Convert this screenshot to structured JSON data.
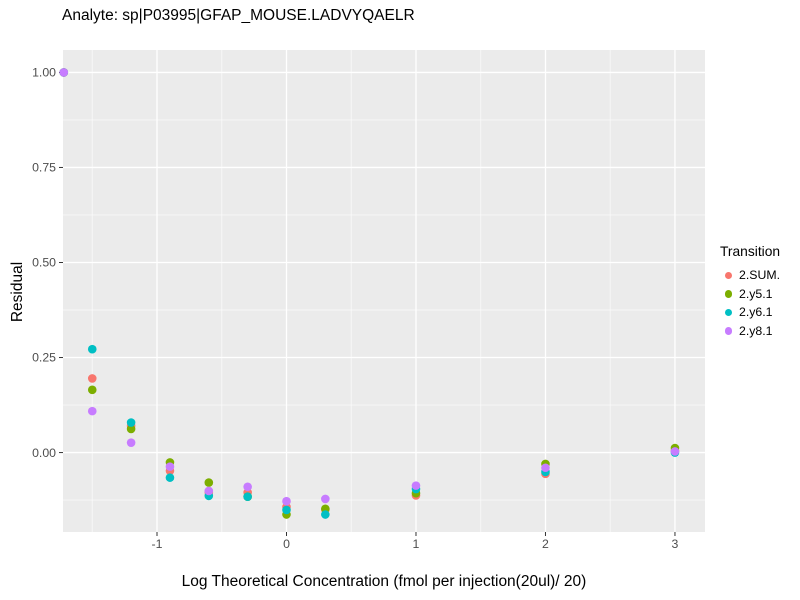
{
  "window": {
    "title": "Analyte: sp|P03995|GFAP_MOUSE.LADVYQAELR"
  },
  "legend": {
    "title": "Transition",
    "items": [
      {
        "label": "2.SUM.",
        "color": "#F8766D"
      },
      {
        "label": "2.y5.1",
        "color": "#7CAE00"
      },
      {
        "label": "2.y6.1",
        "color": "#00BFC4"
      },
      {
        "label": "2.y8.1",
        "color": "#C77CFF"
      }
    ]
  },
  "chart_data": {
    "type": "scatter",
    "title": "Analyte: sp|P03995|GFAP_MOUSE.LADVYQAELR",
    "xlabel": "Log Theoretical Concentration (fmol per injection(20ul)/ 20)",
    "ylabel": "Residual",
    "x": [
      -1.72,
      -1.5,
      -1.2,
      -0.9,
      -0.6,
      -0.3,
      0,
      0.3,
      1,
      2,
      3
    ],
    "series": [
      {
        "name": "2.SUM.",
        "color": "#F8766D",
        "values": [
          1.0,
          0.195,
          0.07,
          -0.048,
          -0.105,
          -0.105,
          -0.143,
          -0.15,
          -0.113,
          -0.056,
          0.005
        ]
      },
      {
        "name": "2.y5.1",
        "color": "#7CAE00",
        "values": [
          1.0,
          0.165,
          0.062,
          -0.026,
          -0.079,
          -0.116,
          -0.163,
          -0.148,
          -0.107,
          -0.03,
          0.012
        ]
      },
      {
        "name": "2.y6.1",
        "color": "#00BFC4",
        "values": [
          1.0,
          0.272,
          0.079,
          -0.066,
          -0.114,
          -0.116,
          -0.151,
          -0.163,
          -0.096,
          -0.051,
          0.0
        ]
      },
      {
        "name": "2.y8.1",
        "color": "#C77CFF",
        "values": [
          1.0,
          0.109,
          0.026,
          -0.037,
          -0.101,
          -0.09,
          -0.128,
          -0.122,
          -0.087,
          -0.04,
          0.003
        ]
      }
    ],
    "x_ticks": [
      -1,
      0,
      1,
      2,
      3
    ],
    "x_tick_labels": [
      "-1",
      "0",
      "1",
      "2",
      "3"
    ],
    "y_ticks": [
      0,
      0.25,
      0.5,
      0.75,
      1
    ],
    "y_tick_labels": [
      "0.00",
      "0.25",
      "0.50",
      "0.75",
      "1.00"
    ],
    "x_minor_ticks": [
      -1.5,
      -0.5,
      0.5,
      1.5,
      2.5
    ],
    "y_minor_ticks": [
      -0.125,
      0.125,
      0.375,
      0.625,
      0.875
    ],
    "xlim": [
      -1.726,
      3.232
    ],
    "ylim": [
      -0.209,
      1.059
    ],
    "grid": true,
    "legend_position": "right",
    "legend_title": "Transition",
    "panel_bg": "#EBEBEB",
    "grid_color": "#FFFFFF",
    "tick_label_color": "#4D4D4D",
    "tick_mark_color": "#333333",
    "point_radius": 4.3
  }
}
